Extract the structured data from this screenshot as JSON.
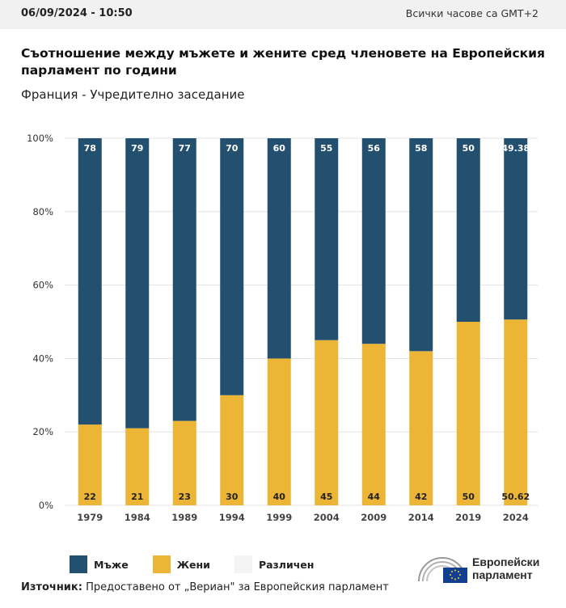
{
  "header": {
    "date": "06/09/2024 - 10:50",
    "timezone": "Всички часове са GMT+2"
  },
  "title": "Съотношение между мъжете и жените сред членовете на Европейския парламент по години",
  "subtitle": "Франция - Учредително заседание",
  "legend": [
    {
      "label": "Мъже",
      "color": "#24506f"
    },
    {
      "label": "Жени",
      "color": "#edb535"
    },
    {
      "label": "Различен",
      "color": "#f4f4f4"
    }
  ],
  "source": {
    "label": "Източник:",
    "text": "Предоставено от „Вериан\" за Европейския парламент"
  },
  "logo": {
    "line1": "Европейски",
    "line2": "парламент"
  },
  "chart_data": {
    "type": "bar",
    "stacked": true,
    "categories": [
      "1979",
      "1984",
      "1989",
      "1994",
      "1999",
      "2004",
      "2009",
      "2014",
      "2019",
      "2024"
    ],
    "series": [
      {
        "name": "Мъже",
        "color": "#24506f",
        "values": [
          78,
          79,
          77,
          70,
          60,
          55,
          56,
          58,
          50,
          49.38
        ]
      },
      {
        "name": "Жени",
        "color": "#edb535",
        "values": [
          22,
          21,
          23,
          30,
          40,
          45,
          44,
          42,
          50,
          50.62
        ]
      },
      {
        "name": "Различен",
        "color": "#f4f4f4",
        "values": [
          0,
          0,
          0,
          0,
          0,
          0,
          0,
          0,
          0,
          0
        ]
      }
    ],
    "y_ticks": [
      "0%",
      "20%",
      "40%",
      "60%",
      "80%",
      "100%"
    ],
    "ylim": [
      0,
      100
    ],
    "grid": true,
    "legend_position": "bottom-left"
  }
}
